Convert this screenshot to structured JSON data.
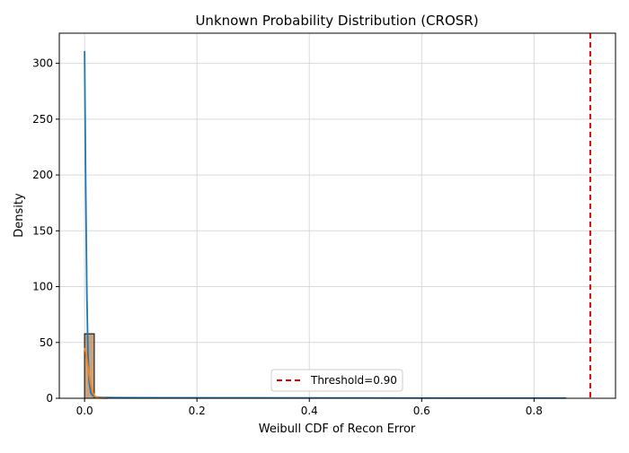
{
  "chart_data": {
    "type": "histogram",
    "title": "Unknown Probability Distribution (CROSR)",
    "xlabel": "Weibull CDF of Recon Error",
    "ylabel": "Density",
    "xlim": [
      -0.045,
      0.945
    ],
    "ylim": [
      0,
      327
    ],
    "x_ticks": [
      0.0,
      0.2,
      0.4,
      0.6,
      0.8
    ],
    "x_tick_labels": [
      "0.0",
      "0.2",
      "0.4",
      "0.6",
      "0.8"
    ],
    "y_ticks": [
      0,
      50,
      100,
      150,
      200,
      250,
      300
    ],
    "y_tick_labels": [
      "0",
      "50",
      "100",
      "150",
      "200",
      "250",
      "300"
    ],
    "grid": true,
    "legend": {
      "placement": "lower-center",
      "entries": [
        "Threshold=0.90"
      ]
    },
    "colors": {
      "hist_a": "#1f77b4",
      "hist_b": "#ff7f0e",
      "kde_a": "#1f77b4",
      "kde_b": "#ff7f0e",
      "threshold": "#e00000",
      "grid": "#d9d9d9"
    },
    "histograms": [
      {
        "name": "",
        "color": "#1f77b4",
        "bins": [
          [
            0.0,
            0.0172,
            57.5
          ]
        ]
      },
      {
        "name": "",
        "color": "#ff7f0e",
        "bins": [
          [
            0.0,
            0.0172,
            57.8
          ]
        ]
      }
    ],
    "kde_series": [
      {
        "name": "",
        "color": "#1f77b4",
        "x": [
          0.0,
          0.002,
          0.004,
          0.006,
          0.008,
          0.011,
          0.015,
          0.02,
          0.03,
          0.05,
          0.1,
          0.3,
          0.5,
          0.7,
          0.857
        ],
        "y": [
          311,
          190,
          95,
          40,
          15,
          5,
          2,
          1.2,
          0.8,
          0.6,
          0.5,
          0.4,
          0.3,
          0.2,
          0.2
        ]
      },
      {
        "name": "",
        "color": "#ff7f0e",
        "x": [
          0.0,
          0.002,
          0.004,
          0.006,
          0.008,
          0.01,
          0.012,
          0.015,
          0.018,
          0.022,
          0.03,
          0.04
        ],
        "y": [
          45,
          41,
          35,
          28,
          21,
          15,
          10,
          5,
          2,
          0.8,
          0.2,
          0
        ]
      }
    ],
    "threshold": {
      "label": "Threshold=0.90",
      "x": 0.9
    }
  }
}
